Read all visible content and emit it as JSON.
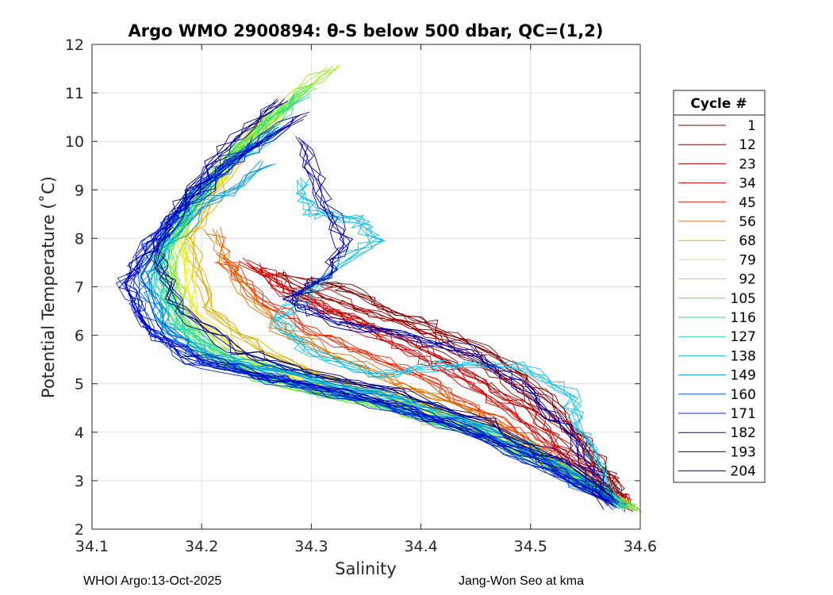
{
  "chart_data": {
    "type": "line",
    "title": "Argo WMO 2900894: θ-S below 500 dbar,  QC=(1,2)",
    "xlabel": "Salinity",
    "ylabel": "Potential Temperature (˚C)",
    "xlim": [
      34.1,
      34.6
    ],
    "ylim": [
      2,
      12
    ],
    "xticks": [
      "34.1",
      "34.2",
      "34.3",
      "34.4",
      "34.5",
      "34.6"
    ],
    "yticks": [
      "2",
      "3",
      "4",
      "5",
      "6",
      "7",
      "8",
      "9",
      "10",
      "11",
      "12"
    ],
    "grid": true,
    "legend": {
      "title": "Cycle #",
      "location": "right-outside",
      "entries": [
        {
          "label": "1",
          "color": "#800000"
        },
        {
          "label": "12",
          "color": "#9a0000"
        },
        {
          "label": "23",
          "color": "#b50000"
        },
        {
          "label": "34",
          "color": "#d40000"
        },
        {
          "label": "45",
          "color": "#f02800"
        },
        {
          "label": "56",
          "color": "#e07000"
        },
        {
          "label": "68",
          "color": "#d8b000"
        },
        {
          "label": "79",
          "color": "#ecec00"
        },
        {
          "label": "92",
          "color": "#9ee82a"
        },
        {
          "label": "105",
          "color": "#50ec50"
        },
        {
          "label": "116",
          "color": "#28d890"
        },
        {
          "label": "127",
          "color": "#20d8c0"
        },
        {
          "label": "138",
          "color": "#10c0e8"
        },
        {
          "label": "149",
          "color": "#0098d8"
        },
        {
          "label": "160",
          "color": "#0060e0"
        },
        {
          "label": "171",
          "color": "#0028d8"
        },
        {
          "label": "182",
          "color": "#0000a8"
        },
        {
          "label": "193",
          "color": "#000088"
        },
        {
          "label": "204",
          "color": "#0000c0"
        }
      ]
    },
    "series": [
      {
        "name": "1",
        "color": "#800000",
        "s": [
          34.3,
          34.33,
          34.37,
          34.42,
          34.47,
          34.51,
          34.54,
          34.57,
          34.585
        ],
        "t": [
          7.2,
          6.95,
          6.55,
          6.1,
          5.55,
          4.85,
          4.1,
          3.15,
          2.6
        ]
      },
      {
        "name": "12",
        "color": "#9a0000",
        "s": [
          34.27,
          34.31,
          34.36,
          34.41,
          34.46,
          34.5,
          34.54,
          34.57,
          34.59
        ],
        "t": [
          7.3,
          6.85,
          6.45,
          6.0,
          5.4,
          4.7,
          3.9,
          3.05,
          2.5
        ]
      },
      {
        "name": "23",
        "color": "#b50000",
        "s": [
          34.25,
          34.29,
          34.34,
          34.39,
          34.44,
          34.49,
          34.53,
          34.565,
          34.59
        ],
        "t": [
          7.4,
          6.8,
          6.3,
          5.85,
          5.25,
          4.6,
          3.8,
          3.0,
          2.45
        ]
      },
      {
        "name": "34",
        "color": "#d40000",
        "s": [
          34.24,
          34.28,
          34.33,
          34.38,
          34.43,
          34.48,
          34.52,
          34.56,
          34.585
        ],
        "t": [
          7.5,
          6.9,
          6.35,
          5.8,
          5.2,
          4.5,
          3.7,
          2.95,
          2.5
        ]
      },
      {
        "name": "45",
        "color": "#f02800",
        "s": [
          34.22,
          34.25,
          34.3,
          34.35,
          34.41,
          34.46,
          34.51,
          34.55,
          34.58
        ],
        "t": [
          7.6,
          6.8,
          6.1,
          5.6,
          5.0,
          4.4,
          3.7,
          3.0,
          2.55
        ]
      },
      {
        "name": "56",
        "color": "#e07000",
        "s": [
          34.21,
          34.23,
          34.27,
          34.33,
          34.39,
          34.45,
          34.5,
          34.55,
          34.585
        ],
        "t": [
          8.2,
          7.2,
          6.2,
          5.5,
          4.95,
          4.4,
          3.7,
          3.0,
          2.5
        ]
      },
      {
        "name": "68",
        "color": "#d8b000",
        "s": [
          34.26,
          34.22,
          34.19,
          34.21,
          34.26,
          34.33,
          34.4,
          34.47,
          34.53,
          34.585
        ],
        "t": [
          10.5,
          9.3,
          8.0,
          6.5,
          5.6,
          5.0,
          4.6,
          4.0,
          3.3,
          2.5
        ]
      },
      {
        "name": "79",
        "color": "#ecec00",
        "s": [
          34.28,
          34.23,
          34.18,
          34.19,
          34.24,
          34.31,
          34.39,
          34.47,
          34.53,
          34.59
        ],
        "t": [
          10.8,
          9.6,
          8.2,
          6.6,
          5.5,
          4.9,
          4.5,
          3.9,
          3.2,
          2.45
        ]
      },
      {
        "name": "92",
        "color": "#9ee82a",
        "s": [
          34.32,
          34.26,
          34.2,
          34.17,
          34.19,
          34.24,
          34.31,
          34.39,
          34.47,
          34.54,
          34.595
        ],
        "t": [
          11.55,
          10.4,
          9.1,
          7.6,
          6.2,
          5.3,
          4.8,
          4.4,
          3.8,
          3.1,
          2.4
        ]
      },
      {
        "name": "105",
        "color": "#50ec50",
        "s": [
          34.3,
          34.25,
          34.2,
          34.165,
          34.18,
          34.22,
          34.29,
          34.37,
          34.45,
          34.53,
          34.59
        ],
        "t": [
          11.2,
          10.2,
          9.0,
          7.7,
          6.4,
          5.4,
          4.9,
          4.5,
          4.0,
          3.2,
          2.45
        ]
      },
      {
        "name": "116",
        "color": "#28d890",
        "s": [
          34.29,
          34.24,
          34.19,
          34.16,
          34.17,
          34.21,
          34.28,
          34.36,
          34.44,
          34.52,
          34.585
        ],
        "t": [
          10.9,
          9.9,
          8.8,
          7.6,
          6.3,
          5.5,
          5.0,
          4.6,
          4.1,
          3.3,
          2.5
        ]
      },
      {
        "name": "127",
        "color": "#20d8c0",
        "s": [
          34.27,
          34.22,
          34.18,
          34.16,
          34.18,
          34.23,
          34.3,
          34.38,
          34.46,
          34.53,
          34.585
        ],
        "t": [
          10.2,
          9.4,
          8.4,
          7.3,
          6.2,
          5.5,
          5.1,
          4.7,
          4.1,
          3.3,
          2.5
        ]
      },
      {
        "name": "138",
        "color": "#10c0e8",
        "s": [
          34.29,
          34.3,
          34.34,
          34.36,
          34.31,
          34.27,
          34.3,
          34.36,
          34.43,
          34.49,
          34.535,
          34.55,
          34.58
        ],
        "t": [
          9.2,
          8.5,
          8.4,
          8.0,
          7.2,
          6.3,
          5.6,
          5.2,
          5.4,
          5.4,
          4.8,
          3.9,
          2.6
        ]
      },
      {
        "name": "149",
        "color": "#0098d8",
        "s": [
          34.26,
          34.21,
          34.17,
          34.15,
          34.17,
          34.22,
          34.3,
          34.38,
          34.46,
          34.53,
          34.58
        ],
        "t": [
          9.5,
          8.8,
          7.9,
          7.0,
          6.1,
          5.5,
          5.1,
          4.7,
          4.1,
          3.3,
          2.5
        ]
      },
      {
        "name": "160",
        "color": "#0060e0",
        "s": [
          34.27,
          34.22,
          34.17,
          34.145,
          34.16,
          34.2,
          34.27,
          34.35,
          34.43,
          34.51,
          34.575
        ],
        "t": [
          10.3,
          9.4,
          8.3,
          7.2,
          6.2,
          5.5,
          5.1,
          4.7,
          4.2,
          3.4,
          2.55
        ]
      },
      {
        "name": "171",
        "color": "#0028d8",
        "s": [
          34.25,
          34.2,
          34.16,
          34.13,
          34.15,
          34.19,
          34.26,
          34.34,
          34.42,
          34.5,
          34.575
        ],
        "t": [
          10.0,
          9.2,
          8.1,
          7.1,
          6.1,
          5.5,
          5.1,
          4.7,
          4.2,
          3.4,
          2.5
        ]
      },
      {
        "name": "182",
        "color": "#0000a8",
        "s": [
          34.29,
          34.31,
          34.33,
          34.31,
          34.28,
          34.32,
          34.38,
          34.44,
          34.49,
          34.53,
          34.57
        ],
        "t": [
          10.0,
          8.9,
          7.9,
          7.2,
          6.7,
          6.3,
          6.0,
          5.7,
          5.0,
          4.1,
          2.7
        ]
      },
      {
        "name": "193",
        "color": "#000088",
        "s": [
          34.27,
          34.22,
          34.18,
          34.16,
          34.18,
          34.23,
          34.3,
          34.38,
          34.46,
          34.53,
          34.58
        ],
        "t": [
          10.85,
          9.8,
          8.7,
          7.6,
          6.5,
          5.7,
          5.2,
          4.8,
          4.2,
          3.4,
          2.55
        ]
      },
      {
        "name": "204",
        "color": "#0000c0",
        "s": [
          34.29,
          34.23,
          34.18,
          34.145,
          34.13,
          34.15,
          34.2,
          34.27,
          34.35,
          34.43,
          34.51,
          34.575
        ],
        "t": [
          10.55,
          9.6,
          8.6,
          7.6,
          7.05,
          6.2,
          5.5,
          5.1,
          4.7,
          4.2,
          3.4,
          2.5
        ]
      }
    ]
  },
  "footer": {
    "left": "WHOI Argo:13-Oct-2025",
    "right": "Jang-Won Seo at kma"
  }
}
